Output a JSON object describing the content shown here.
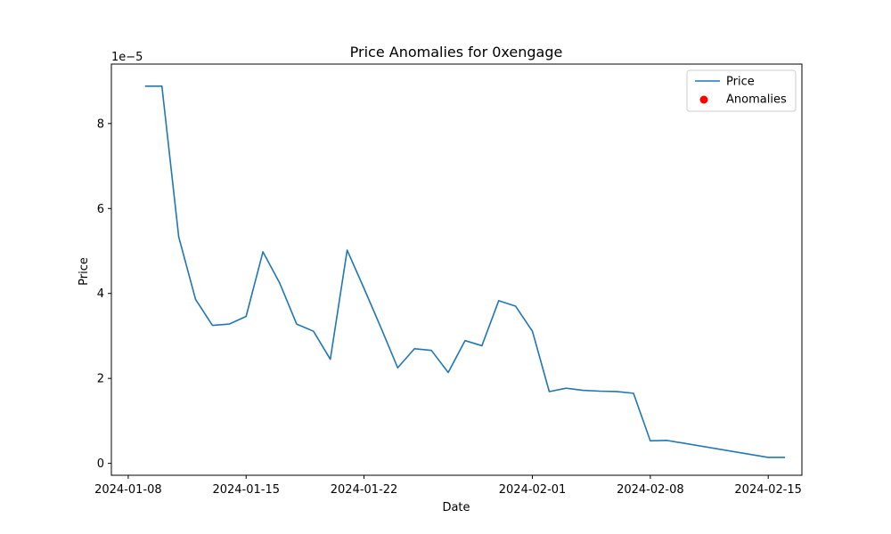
{
  "chart_data": {
    "type": "line",
    "title": "Price Anomalies for 0xengage",
    "xlabel": "Date",
    "ylabel": "Price",
    "y_offset_text": "1e−5",
    "y_scale_multiplier": 1e-05,
    "x_ticks": [
      "2024-01-08",
      "2024-01-15",
      "2024-01-22",
      "2024-02-01",
      "2024-02-08",
      "2024-02-15"
    ],
    "y_ticks": [
      0,
      2,
      4,
      6,
      8
    ],
    "xlim": [
      "2024-01-07",
      "2024-02-17"
    ],
    "ylim": [
      -0.28,
      9.4
    ],
    "legend_position": "top-right",
    "grid": false,
    "series": [
      {
        "name": "Price",
        "kind": "line",
        "color": "#1f77b4",
        "x": [
          "2024-01-09",
          "2024-01-10",
          "2024-01-11",
          "2024-01-12",
          "2024-01-13",
          "2024-01-14",
          "2024-01-15",
          "2024-01-16",
          "2024-01-17",
          "2024-01-18",
          "2024-01-19",
          "2024-01-20",
          "2024-01-21",
          "2024-01-22",
          "2024-01-23",
          "2024-01-24",
          "2024-01-25",
          "2024-01-26",
          "2024-01-27",
          "2024-01-28",
          "2024-01-29",
          "2024-01-30",
          "2024-01-31",
          "2024-02-01",
          "2024-02-02",
          "2024-02-03",
          "2024-02-04",
          "2024-02-05",
          "2024-02-06",
          "2024-02-07",
          "2024-02-08",
          "2024-02-09",
          "2024-02-15",
          "2024-02-16"
        ],
        "y": [
          8.88,
          8.88,
          5.33,
          3.86,
          3.25,
          3.28,
          3.46,
          4.98,
          4.24,
          3.28,
          3.11,
          2.45,
          5.02,
          4.12,
          3.2,
          2.25,
          2.7,
          2.66,
          2.14,
          2.89,
          2.77,
          3.83,
          3.7,
          3.11,
          1.69,
          1.77,
          1.72,
          1.7,
          1.69,
          1.65,
          0.53,
          0.54,
          0.14,
          0.14
        ]
      },
      {
        "name": "Anomalies",
        "kind": "scatter",
        "color": "#ff0000",
        "x": [],
        "y": []
      }
    ]
  }
}
